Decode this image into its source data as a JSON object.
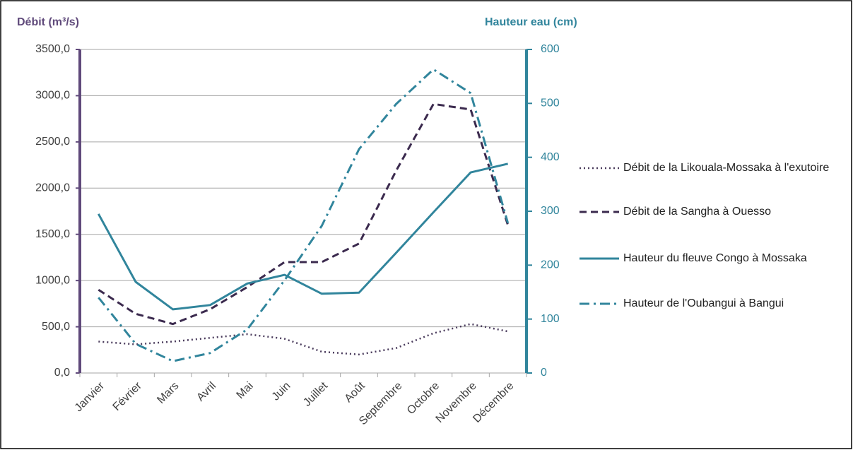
{
  "chart_data": {
    "type": "line",
    "y_label": "Débit (m³/s)",
    "y2_label": "Hauteur eau (cm)",
    "categories": [
      "Janvier",
      "Février",
      "Mars",
      "Avril",
      "Mai",
      "Juin",
      "Juillet",
      "Août",
      "Septembre",
      "Octobre",
      "Novembre",
      "Décembre"
    ],
    "series": [
      {
        "name": "Débit de la Likouala-Mossaka à l'exutoire",
        "color": "#4a3b5c",
        "line_style": "dotted",
        "axis": "y",
        "values": [
          340,
          310,
          340,
          380,
          420,
          370,
          230,
          200,
          270,
          430,
          530,
          450
        ]
      },
      {
        "name": "Débit de la Sangha à Ouesso",
        "color": "#3b2a4e",
        "line_style": "dashed",
        "axis": "y",
        "values": [
          900,
          640,
          530,
          690,
          930,
          1200,
          1200,
          1400,
          2190,
          2910,
          2850,
          1600
        ]
      },
      {
        "name": "Hauteur du fleuve Congo à Mossaka",
        "color": "#31859c",
        "line_style": "solid",
        "axis": "y2",
        "values": [
          295,
          169,
          118,
          126,
          166,
          182,
          147,
          149,
          223,
          298,
          372,
          388
        ]
      },
      {
        "name": "Hauteur de l'Oubangui à Bangui",
        "color": "#31859c",
        "line_style": "dashdot",
        "axis": "y2",
        "values": [
          140,
          54,
          22,
          37,
          81,
          172,
          273,
          415,
          499,
          563,
          519,
          278
        ]
      }
    ],
    "ylim": [
      0,
      3500
    ],
    "yticks": [
      {
        "value": 0,
        "label": "0,0"
      },
      {
        "value": 500,
        "label": "500,0"
      },
      {
        "value": 1000,
        "label": "1000,0"
      },
      {
        "value": 1500,
        "label": "1500,0"
      },
      {
        "value": 2000,
        "label": "2000,0"
      },
      {
        "value": 2500,
        "label": "2500,0"
      },
      {
        "value": 3000,
        "label": "3000,0"
      },
      {
        "value": 3500,
        "label": "3500,0"
      }
    ],
    "y2lim": [
      0,
      600
    ],
    "y2ticks": [
      0,
      100,
      200,
      300,
      400,
      500,
      600
    ],
    "y_color": "#604a7b",
    "y2_color": "#31859c",
    "grid": true,
    "legend": "right"
  }
}
